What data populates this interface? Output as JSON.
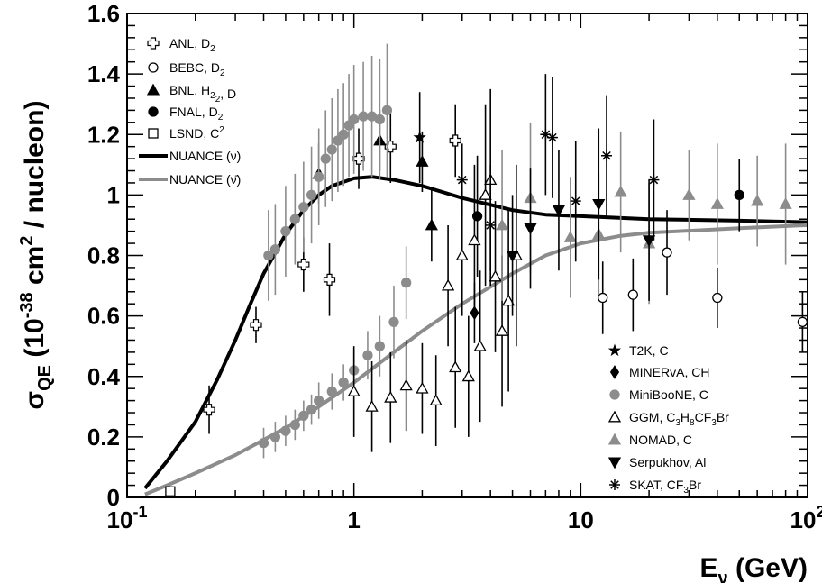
{
  "chart_data": {
    "type": "scatter",
    "x_scale": "log",
    "xlim": [
      0.1,
      100
    ],
    "ylim": [
      0,
      1.6
    ],
    "grid": false,
    "xlabel": {
      "main": "E",
      "sub": "ν",
      "unit": " (GeV)"
    },
    "ylabel": {
      "main": "σ",
      "sub": "QE",
      "pre": " (10",
      "sup": "-38",
      "post": " cm",
      "sup2": "2",
      "tail": " / nucleon)"
    },
    "x_ticks": [
      {
        "value": 0.1,
        "label": "10",
        "sup": "-1"
      },
      {
        "value": 1,
        "label": "1",
        "sup": ""
      },
      {
        "value": 10,
        "label": "10",
        "sup": ""
      },
      {
        "value": 100,
        "label": "10",
        "sup": "2"
      }
    ],
    "y_ticks": [
      {
        "value": 0,
        "label": "0"
      },
      {
        "value": 0.2,
        "label": "0.2"
      },
      {
        "value": 0.4,
        "label": "0.4"
      },
      {
        "value": 0.6,
        "label": "0.6"
      },
      {
        "value": 0.8,
        "label": "0.8"
      },
      {
        "value": 1.0,
        "label": "1"
      },
      {
        "value": 1.2,
        "label": "1.2"
      },
      {
        "value": 1.4,
        "label": "1.4"
      },
      {
        "value": 1.6,
        "label": "1.6"
      }
    ],
    "legend_left": [
      {
        "key": "anl",
        "text": "ANL, D",
        "sub": "2",
        "rest": ""
      },
      {
        "key": "bebc",
        "text": "BEBC, D",
        "sub": "2",
        "rest": ""
      },
      {
        "key": "bnl",
        "text": "BNL, H",
        "sub": "2",
        "rest": ", D",
        "sub2": "2"
      },
      {
        "key": "fnal",
        "text": "FNAL, D",
        "sub": "2",
        "rest": ""
      },
      {
        "key": "lsnd",
        "text": "LSND, C",
        "sup": "2",
        "rest": ""
      },
      {
        "key": "nuance_nu",
        "text": "NUANCE (ν)",
        "rest": ""
      },
      {
        "key": "nuance_nubar",
        "text": "NUANCE (ν̄)",
        "rest": ""
      }
    ],
    "legend_right": [
      {
        "key": "t2k",
        "text": "T2K, C"
      },
      {
        "key": "minerva",
        "text": "MINERvA, CH"
      },
      {
        "key": "miniboone",
        "text": "MiniBooNE, C"
      },
      {
        "key": "ggm",
        "text": "GGM, C",
        "sub": "3",
        "mid": "H",
        "sub2": "8",
        "rest": "CF",
        "sub3": "3",
        "tail": "Br"
      },
      {
        "key": "nomad",
        "text": "NOMAD, C"
      },
      {
        "key": "serpukhov",
        "text": "Serpukhov, Al"
      },
      {
        "key": "skat",
        "text": "SKAT, CF",
        "sub": "3",
        "rest": "Br"
      }
    ],
    "colors": {
      "neutrino": "#000000",
      "antineutrino": "#8c8c8c"
    },
    "series": [
      {
        "key": "nuance_nu",
        "name": "NUANCE (ν)",
        "kind": "line",
        "color": "#000000",
        "x": [
          0.12,
          0.15,
          0.2,
          0.25,
          0.3,
          0.35,
          0.4,
          0.5,
          0.6,
          0.7,
          0.8,
          1.0,
          1.2,
          1.5,
          2,
          3,
          5,
          7,
          10,
          20,
          50,
          100
        ],
        "y": [
          0.03,
          0.12,
          0.25,
          0.39,
          0.52,
          0.64,
          0.74,
          0.87,
          0.95,
          1.0,
          1.03,
          1.055,
          1.06,
          1.05,
          1.03,
          0.99,
          0.95,
          0.935,
          0.93,
          0.92,
          0.915,
          0.91
        ]
      },
      {
        "key": "nuance_nubar",
        "name": "NUANCE (ν̄)",
        "kind": "line",
        "color": "#8c8c8c",
        "x": [
          0.12,
          0.15,
          0.2,
          0.3,
          0.4,
          0.5,
          0.7,
          1.0,
          1.5,
          2,
          3,
          5,
          7,
          10,
          15,
          20,
          50,
          100
        ],
        "y": [
          0.01,
          0.04,
          0.08,
          0.14,
          0.19,
          0.23,
          0.3,
          0.38,
          0.48,
          0.55,
          0.64,
          0.74,
          0.8,
          0.84,
          0.865,
          0.875,
          0.89,
          0.9
        ]
      },
      {
        "key": "anl",
        "name": "ANL, D2",
        "kind": "points",
        "marker": "cross-open",
        "color": "#000000",
        "points": [
          [
            0.23,
            0.29,
            0.08
          ],
          [
            0.37,
            0.57,
            0.06
          ],
          [
            0.6,
            0.77,
            0.09
          ],
          [
            0.78,
            0.72,
            0.12
          ],
          [
            1.05,
            1.12,
            0.1
          ],
          [
            1.45,
            1.16,
            0.12
          ],
          [
            2.8,
            1.18,
            0.12
          ]
        ]
      },
      {
        "key": "bebc",
        "name": "BEBC, D2",
        "kind": "points",
        "marker": "circle-open",
        "color": "#000000",
        "points": [
          [
            12.5,
            0.66,
            0.12
          ],
          [
            17,
            0.67,
            0.12
          ],
          [
            24,
            0.81,
            0.14
          ],
          [
            40,
            0.66,
            0.1
          ],
          [
            95,
            0.58,
            0.1
          ]
        ]
      },
      {
        "key": "bnl",
        "name": "BNL, H2, D2",
        "kind": "points",
        "marker": "triangle",
        "color": "#000000",
        "points": [
          [
            0.7,
            1.07,
            0.1
          ],
          [
            1.3,
            1.18,
            0.1
          ],
          [
            2.0,
            1.11,
            0.1
          ],
          [
            2.2,
            0.9,
            0.12
          ]
        ]
      },
      {
        "key": "fnal",
        "name": "FNAL, D2",
        "kind": "points",
        "marker": "circle",
        "color": "#000000",
        "points": [
          [
            3.5,
            0.93,
            0.2
          ],
          [
            50,
            1.0,
            0.12
          ]
        ]
      },
      {
        "key": "lsnd",
        "name": "LSND, C2",
        "kind": "points",
        "marker": "square-open",
        "color": "#000000",
        "points": [
          [
            0.155,
            0.02,
            0.0
          ]
        ]
      },
      {
        "key": "t2k",
        "name": "T2K, C",
        "kind": "points",
        "marker": "star",
        "color": "#000000",
        "points": [
          [
            1.95,
            1.19,
            0.15
          ]
        ]
      },
      {
        "key": "minerva",
        "name": "MINERvA, CH",
        "kind": "points",
        "marker": "diamond",
        "color": "#000000",
        "points": [
          [
            3.4,
            0.61,
            0.1
          ]
        ]
      },
      {
        "key": "miniboone",
        "name": "MiniBooNE, C",
        "kind": "points",
        "marker": "circle",
        "color": "#8c8c8c",
        "points": [
          [
            0.42,
            0.8,
            0.15
          ],
          [
            0.45,
            0.82,
            0.15
          ],
          [
            0.5,
            0.88,
            0.15
          ],
          [
            0.55,
            0.92,
            0.15
          ],
          [
            0.6,
            0.96,
            0.15
          ],
          [
            0.65,
            1.0,
            0.16
          ],
          [
            0.7,
            1.06,
            0.16
          ],
          [
            0.75,
            1.12,
            0.16
          ],
          [
            0.8,
            1.15,
            0.17
          ],
          [
            0.85,
            1.18,
            0.17
          ],
          [
            0.9,
            1.2,
            0.17
          ],
          [
            0.95,
            1.23,
            0.17
          ],
          [
            1.0,
            1.25,
            0.18
          ],
          [
            1.1,
            1.26,
            0.18
          ],
          [
            1.2,
            1.26,
            0.2
          ],
          [
            1.3,
            1.25,
            0.2
          ],
          [
            1.4,
            1.28,
            0.22
          ],
          [
            1.7,
            0.71,
            0.12
          ],
          [
            0.4,
            0.18,
            0.05
          ],
          [
            0.45,
            0.2,
            0.05
          ],
          [
            0.5,
            0.22,
            0.05
          ],
          [
            0.55,
            0.24,
            0.05
          ],
          [
            0.6,
            0.27,
            0.05
          ],
          [
            0.65,
            0.29,
            0.05
          ],
          [
            0.7,
            0.32,
            0.06
          ],
          [
            0.8,
            0.35,
            0.06
          ],
          [
            0.9,
            0.38,
            0.06
          ],
          [
            1.0,
            0.42,
            0.07
          ],
          [
            1.15,
            0.47,
            0.08
          ],
          [
            1.3,
            0.5,
            0.1
          ],
          [
            1.5,
            0.58,
            0.12
          ]
        ]
      },
      {
        "key": "ggm",
        "name": "GGM, C3H8CF3Br",
        "kind": "points",
        "marker": "triangle-open",
        "color": "#000000",
        "points": [
          [
            1.0,
            0.35,
            0.15
          ],
          [
            1.2,
            0.3,
            0.15
          ],
          [
            1.45,
            0.33,
            0.15
          ],
          [
            1.7,
            0.37,
            0.15
          ],
          [
            2.0,
            0.36,
            0.15
          ],
          [
            2.3,
            0.32,
            0.15
          ],
          [
            2.6,
            0.7,
            0.2
          ],
          [
            2.8,
            0.43,
            0.2
          ],
          [
            3.0,
            0.8,
            0.2
          ],
          [
            3.2,
            0.4,
            0.2
          ],
          [
            3.4,
            0.85,
            0.25
          ],
          [
            3.6,
            0.5,
            0.25
          ],
          [
            3.8,
            1.0,
            0.3
          ],
          [
            4.0,
            1.05,
            0.3
          ],
          [
            4.2,
            0.73,
            0.25
          ],
          [
            4.5,
            0.55,
            0.25
          ],
          [
            4.8,
            0.65,
            0.3
          ],
          [
            5.2,
            0.8,
            0.3
          ]
        ]
      },
      {
        "key": "nomad",
        "name": "NOMAD, C",
        "kind": "points",
        "marker": "triangle",
        "color": "#8c8c8c",
        "points": [
          [
            4.5,
            0.9,
            0.25
          ],
          [
            6.0,
            0.99,
            0.25
          ],
          [
            9.0,
            0.86,
            0.2
          ],
          [
            12.0,
            0.87,
            0.2
          ],
          [
            15.0,
            1.01,
            0.2
          ],
          [
            20.0,
            0.84,
            0.2
          ],
          [
            30.0,
            1.0,
            0.15
          ],
          [
            40.0,
            0.97,
            0.2
          ],
          [
            60.0,
            0.98,
            0.15
          ],
          [
            80.0,
            0.97,
            0.2
          ]
        ]
      },
      {
        "key": "serpukhov",
        "name": "Serpukhov, Al",
        "kind": "points",
        "marker": "triangle-down",
        "color": "#000000",
        "points": [
          [
            5.0,
            0.8,
            0.2
          ],
          [
            6.0,
            0.89,
            0.2
          ],
          [
            8.0,
            0.95,
            0.2
          ],
          [
            12.0,
            0.97,
            0.25
          ],
          [
            20.0,
            0.85,
            0.2
          ]
        ]
      },
      {
        "key": "skat",
        "name": "SKAT, CF3Br",
        "kind": "points",
        "marker": "asterisk",
        "color": "#000000",
        "points": [
          [
            3.0,
            1.05,
            0.12
          ],
          [
            4.0,
            0.9,
            0.2
          ],
          [
            7.0,
            1.2,
            0.2
          ],
          [
            7.5,
            1.19,
            0.2
          ],
          [
            9.5,
            0.98,
            0.2
          ],
          [
            13.0,
            1.13,
            0.2
          ],
          [
            21.0,
            1.05,
            0.2
          ]
        ]
      }
    ]
  }
}
